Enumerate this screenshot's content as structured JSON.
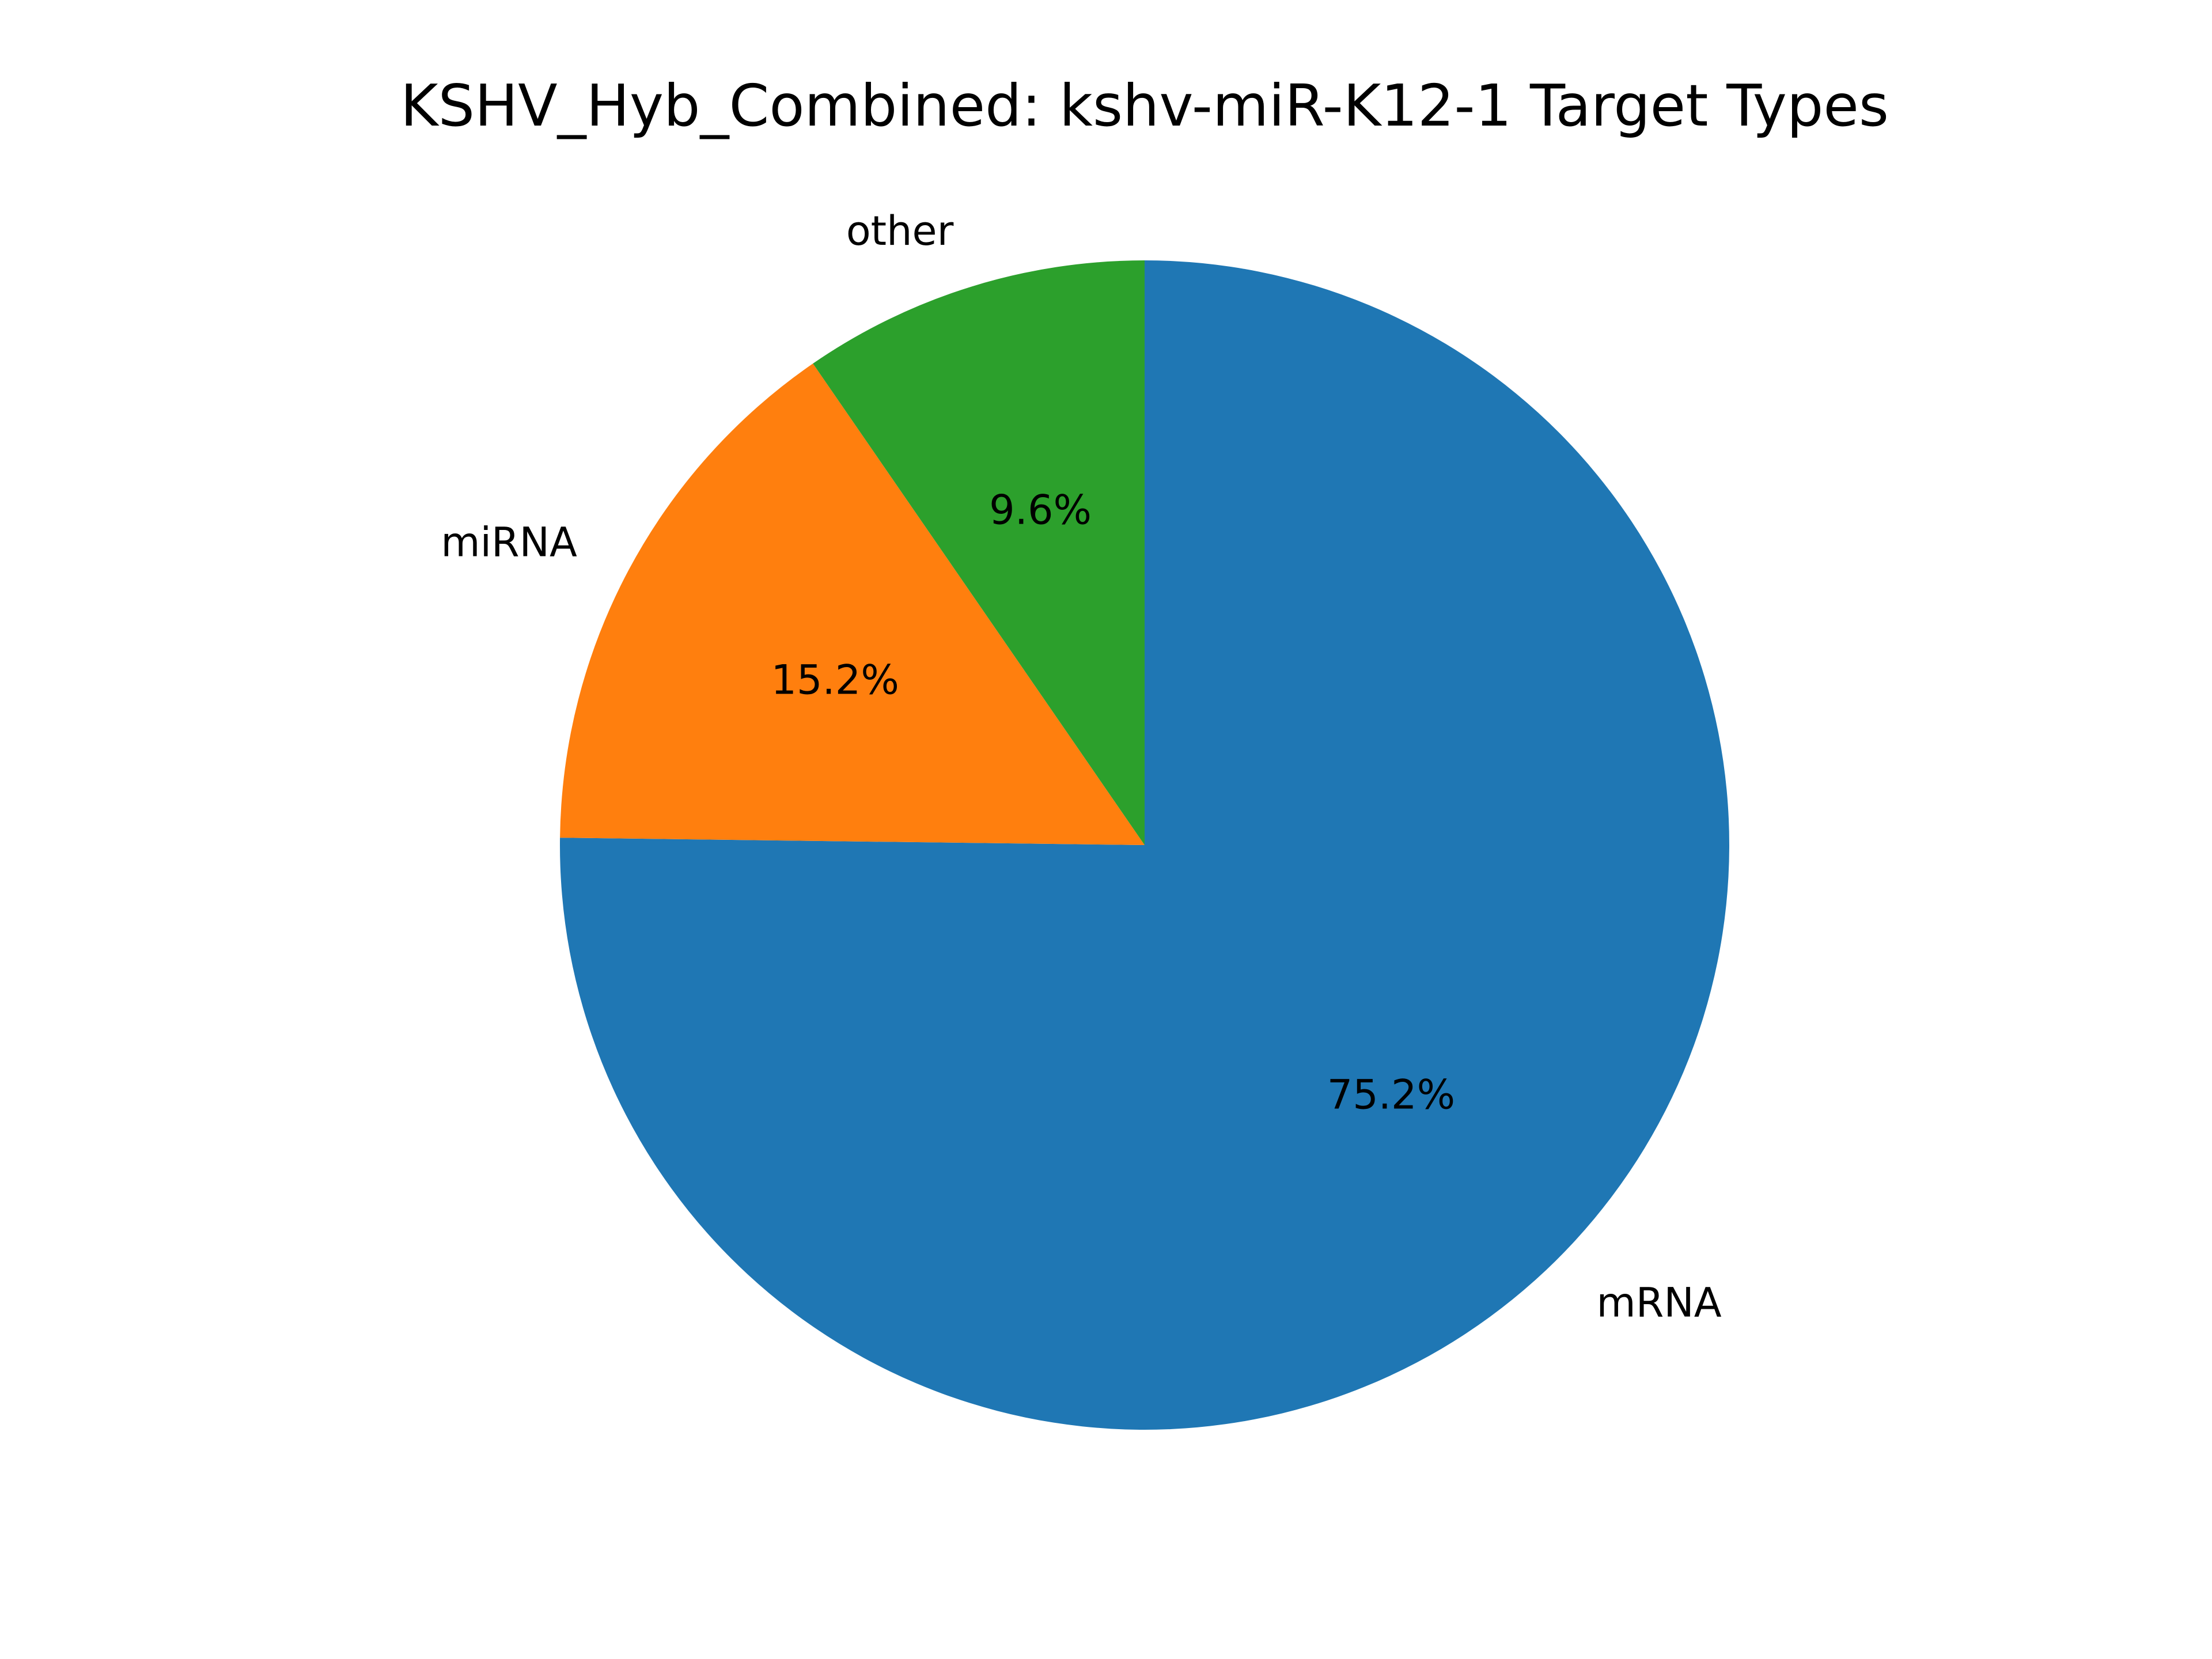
{
  "chart_data": {
    "type": "pie",
    "title": "KSHV_Hyb_Combined: kshv-miR-K12-1 Target Types",
    "slices": [
      {
        "label": "mRNA",
        "value": 75.2,
        "pct_label": "75.2%",
        "color": "#1f77b4"
      },
      {
        "label": "miRNA",
        "value": 15.2,
        "pct_label": "15.2%",
        "color": "#ff7f0e"
      },
      {
        "label": "other",
        "value": 9.6,
        "pct_label": "9.6%",
        "color": "#2ca02c"
      }
    ],
    "start_angle_deg": 90,
    "direction": "clockwise",
    "legend": "none"
  }
}
